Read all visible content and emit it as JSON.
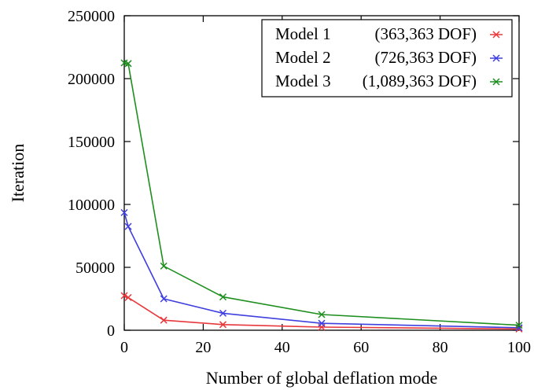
{
  "chart_data": {
    "type": "line",
    "xlabel": "Number of global deflation mode",
    "ylabel": "Iteration",
    "xlim": [
      0,
      100
    ],
    "ylim": [
      0,
      250000
    ],
    "xticks": [
      0,
      20,
      40,
      60,
      80,
      100
    ],
    "yticks": [
      0,
      50000,
      100000,
      150000,
      200000,
      250000
    ],
    "grid": false,
    "legend_position": "top-right",
    "marker": "x",
    "series": [
      {
        "name": "Model 1",
        "dof": "(363,363 DOF)",
        "color": "#e8383c",
        "x": [
          0,
          1,
          10,
          25,
          50,
          100
        ],
        "y": [
          27500,
          26000,
          8000,
          4500,
          2500,
          1000
        ]
      },
      {
        "name": "Model 2",
        "dof": "(726,363 DOF)",
        "color": "#3f3fe0",
        "x": [
          0,
          1,
          10,
          25,
          50,
          100
        ],
        "y": [
          93500,
          82500,
          25000,
          13500,
          5500,
          2000
        ]
      },
      {
        "name": "Model 3",
        "dof": "(1,089,363 DOF)",
        "color": "#1e8f1e",
        "x": [
          0,
          1,
          10,
          25,
          50,
          100
        ],
        "y": [
          212500,
          212000,
          51000,
          26500,
          12500,
          4000
        ]
      }
    ]
  }
}
